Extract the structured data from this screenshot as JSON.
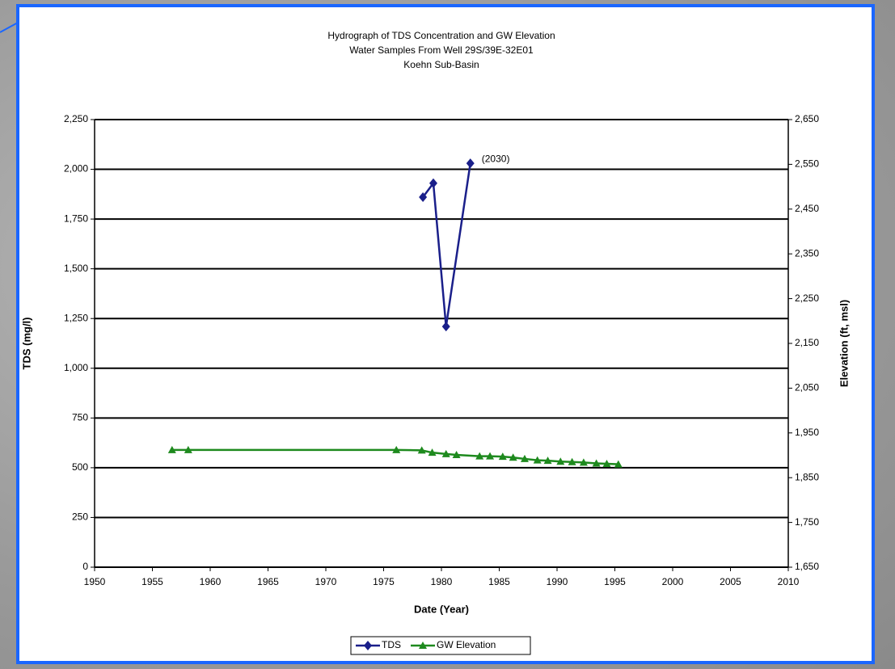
{
  "chart_data": {
    "type": "line",
    "title": [
      "Hydrograph of TDS Concentration and GW Elevation",
      "Water Samples From Well 29S/39E-32E01",
      "Koehn Sub-Basin"
    ],
    "x_label": "Date (Year)",
    "y_label": "TDS (mg/l)",
    "y2_label": "Elevation (ft, msl)",
    "xlim": [
      1950,
      2010
    ],
    "xticks": [
      1950,
      1955,
      1960,
      1965,
      1970,
      1975,
      1980,
      1985,
      1990,
      1995,
      2000,
      2005,
      2010
    ],
    "ylim": [
      0,
      2250
    ],
    "yticks": [
      0,
      250,
      500,
      750,
      {
        "value": 1000,
        "label": "1,000"
      },
      {
        "value": 1250,
        "label": "1,250"
      },
      {
        "value": 1500,
        "label": "1,500"
      },
      {
        "value": 1750,
        "label": "1,750"
      },
      {
        "value": 2000,
        "label": "2,000"
      },
      {
        "value": 2250,
        "label": "2,250"
      }
    ],
    "y2lim": [
      1650,
      2650
    ],
    "y2ticks": [
      {
        "value": 1650,
        "label": "1,650"
      },
      {
        "value": 1750,
        "label": "1,750"
      },
      {
        "value": 1850,
        "label": "1,850"
      },
      {
        "value": 1950,
        "label": "1,950"
      },
      {
        "value": 2050,
        "label": "2,050"
      },
      {
        "value": 2150,
        "label": "2,150"
      },
      {
        "value": 2250,
        "label": "2,250"
      },
      {
        "value": 2350,
        "label": "2,350"
      },
      {
        "value": 2450,
        "label": "2,450"
      },
      {
        "value": 2550,
        "label": "2,550"
      },
      {
        "value": 2650,
        "label": "2,650"
      }
    ],
    "grid": true,
    "legend": "bottom",
    "series": [
      {
        "name": "TDS",
        "color": "#1a1f8a",
        "marker": "diamond",
        "x": [
          1978.4,
          1979.3,
          1980.4,
          1982.5
        ],
        "values": [
          1860,
          1930,
          1210,
          2030
        ]
      },
      {
        "name": "GW Elevation",
        "color": "#1e8a1e",
        "marker": "triangle",
        "axis": "y2",
        "x": [
          1956.7,
          1958.1,
          1976.1,
          1978.3,
          1979.2,
          1980.4,
          1981.3,
          1983.3,
          1984.2,
          1985.3,
          1986.2,
          1987.2,
          1988.3,
          1989.2,
          1990.3,
          1991.3,
          1992.3,
          1993.4,
          1994.3,
          1995.3
        ],
        "values": [
          1912,
          1912,
          1912,
          1911,
          1906,
          1903,
          1901,
          1898,
          1898,
          1897,
          1895,
          1892,
          1889,
          1888,
          1886,
          1885,
          1884,
          1882,
          1881,
          1880
        ]
      }
    ],
    "annotations": [
      {
        "text": "(2030)",
        "series": 0,
        "index": 3
      }
    ]
  }
}
